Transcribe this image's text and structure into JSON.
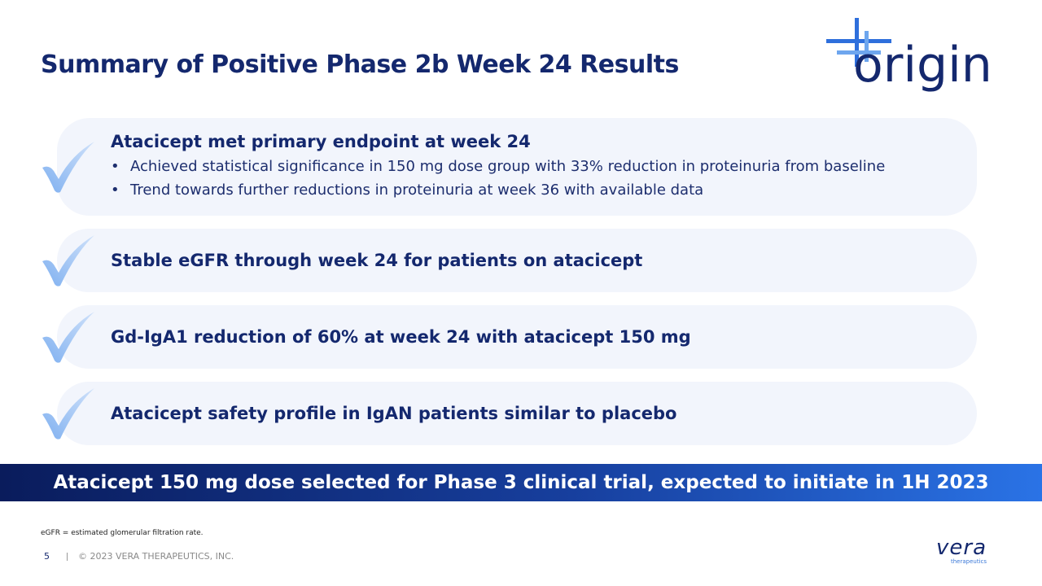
{
  "header": {
    "title": "Summary of Positive Phase 2b Week 24 Results",
    "logo": "origin"
  },
  "items": [
    {
      "heading": "Atacicept met primary endpoint at week 24",
      "bullets": [
        "Achieved statistical significance in 150 mg dose group with 33% reduction in proteinuria from baseline",
        "Trend towards further reductions in proteinuria at week 36 with available data"
      ]
    },
    {
      "heading": "Stable eGFR through week 24 for patients on atacicept"
    },
    {
      "heading": "Gd-IgA1 reduction of 60% at week 24 with atacicept 150 mg"
    },
    {
      "heading": "Atacicept safety profile in IgAN patients similar to placebo"
    }
  ],
  "banner": "Atacicept 150 mg dose selected for Phase 3 clinical trial, expected to initiate in 1H 2023",
  "footnote": "eGFR = estimated glomerular filtration rate.",
  "footer": {
    "page": "5",
    "copyright": "© 2023 VERA THERAPEUTICS, INC.",
    "logo_name": "vera",
    "logo_sub": "therapeutics"
  }
}
